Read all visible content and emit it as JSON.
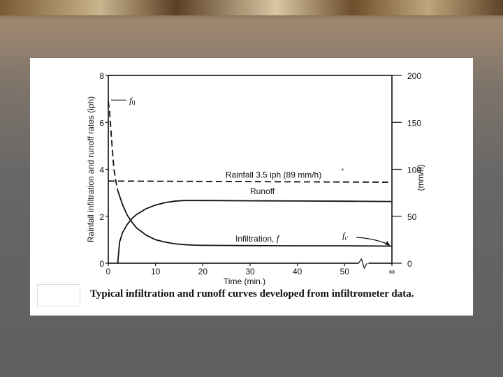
{
  "chart_data": {
    "type": "line",
    "caption": "Typical infiltration and runoff curves developed from infiltrometer data.",
    "xlabel": "Time (min.)",
    "x_ticks": [
      "0",
      "10",
      "20",
      "30",
      "40",
      "50",
      "∞"
    ],
    "xlim": [
      0,
      60
    ],
    "ylabel_left": "Rainfall infiltration and runoff rates (iph)",
    "y_ticks_left": [
      "0",
      "2",
      "4",
      "6",
      "8"
    ],
    "ylim_left": [
      0,
      8
    ],
    "ylabel_right": "(mm/h)",
    "y_ticks_right": [
      "0",
      "50",
      "100",
      "150",
      "200"
    ],
    "ylim_right": [
      0,
      200
    ],
    "annotations": {
      "f0": "f0",
      "fc": "fc",
      "rainfall": "Rainfall 3.5 iph (89 mm/h)",
      "rainfall_mark": "*",
      "runoff": "Runoff",
      "infiltration": "Infiltration, f"
    },
    "series": [
      {
        "key": "rainfall",
        "style": "dashed",
        "x": [
          0,
          60
        ],
        "y": [
          3.5,
          3.45
        ]
      },
      {
        "key": "initial_infiltration",
        "style": "dashed",
        "x": [
          0,
          0.3,
          0.8,
          1.2,
          1.6,
          2.0
        ],
        "y": [
          6.9,
          6.4,
          5.0,
          4.0,
          3.5,
          3.1
        ]
      },
      {
        "key": "infiltration",
        "style": "solid",
        "x": [
          2,
          3,
          4,
          5,
          6,
          8,
          10,
          12,
          14,
          16,
          18,
          20,
          30,
          40,
          50,
          60
        ],
        "y": [
          3.1,
          2.5,
          2.05,
          1.75,
          1.5,
          1.2,
          1.0,
          0.9,
          0.83,
          0.79,
          0.77,
          0.76,
          0.75,
          0.74,
          0.74,
          0.73
        ]
      },
      {
        "key": "runoff",
        "style": "solid",
        "x": [
          2,
          2.4,
          3,
          4,
          5,
          6,
          8,
          10,
          12,
          14,
          16,
          18,
          20,
          30,
          40,
          50,
          60
        ],
        "y": [
          0,
          0.9,
          1.3,
          1.65,
          1.9,
          2.08,
          2.32,
          2.48,
          2.58,
          2.64,
          2.67,
          2.67,
          2.67,
          2.66,
          2.65,
          2.64,
          2.63
        ]
      }
    ]
  }
}
